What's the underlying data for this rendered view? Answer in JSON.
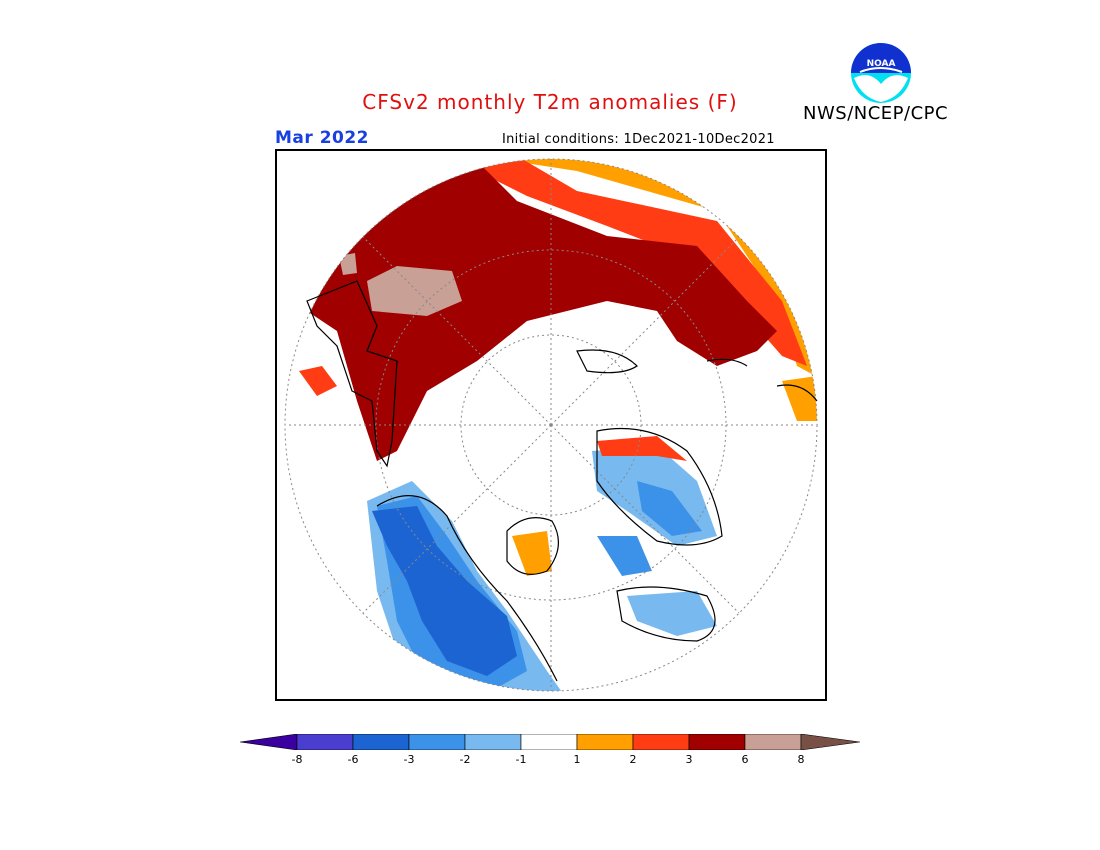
{
  "header": {
    "title": "CFSv2 monthly T2m anomalies (F)",
    "organization": "NWS/NCEP/CPC",
    "logo_text": "NOAA",
    "valid_month": "Mar 2022",
    "initial_conditions": "Initial conditions: 1Dec2021-10Dec2021"
  },
  "colors": {
    "title": "#e01010",
    "month": "#1840e0",
    "bins": [
      "#3a00a0",
      "#4a3ed0",
      "#1b64d2",
      "#3c91e8",
      "#78b9f0",
      "#ffffff",
      "#ffa000",
      "#ff3c14",
      "#a00000",
      "#c8a096",
      "#785046"
    ],
    "map_outline": "#000000",
    "grid": "#888888"
  },
  "legend": {
    "ticks": [
      "-8",
      "-6",
      "-3",
      "-2",
      "-1",
      "1",
      "2",
      "3",
      "6",
      "8"
    ]
  }
}
